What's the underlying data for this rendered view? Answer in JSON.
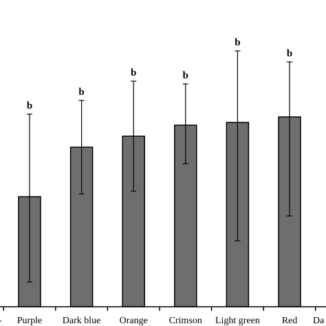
{
  "chart_data": {
    "type": "bar",
    "categories": [
      "Purple",
      "Dark blue",
      "Orange",
      "Crimson",
      "Light green",
      "Red"
    ],
    "values": [
      0.4,
      0.58,
      0.62,
      0.66,
      0.67,
      0.69
    ],
    "error_upper": [
      0.7,
      0.75,
      0.82,
      0.81,
      0.93,
      0.89
    ],
    "error_lower": [
      0.09,
      0.41,
      0.42,
      0.52,
      0.24,
      0.33
    ],
    "significance_labels": [
      "b",
      "b",
      "b",
      "b",
      "b",
      "b"
    ],
    "partial_labels": {
      "left": "-",
      "right": "Da"
    },
    "bar_color": "#6e6e6e",
    "ylim": [
      0,
      1.5
    ],
    "grid": false,
    "title": "",
    "xlabel": "",
    "ylabel": ""
  }
}
